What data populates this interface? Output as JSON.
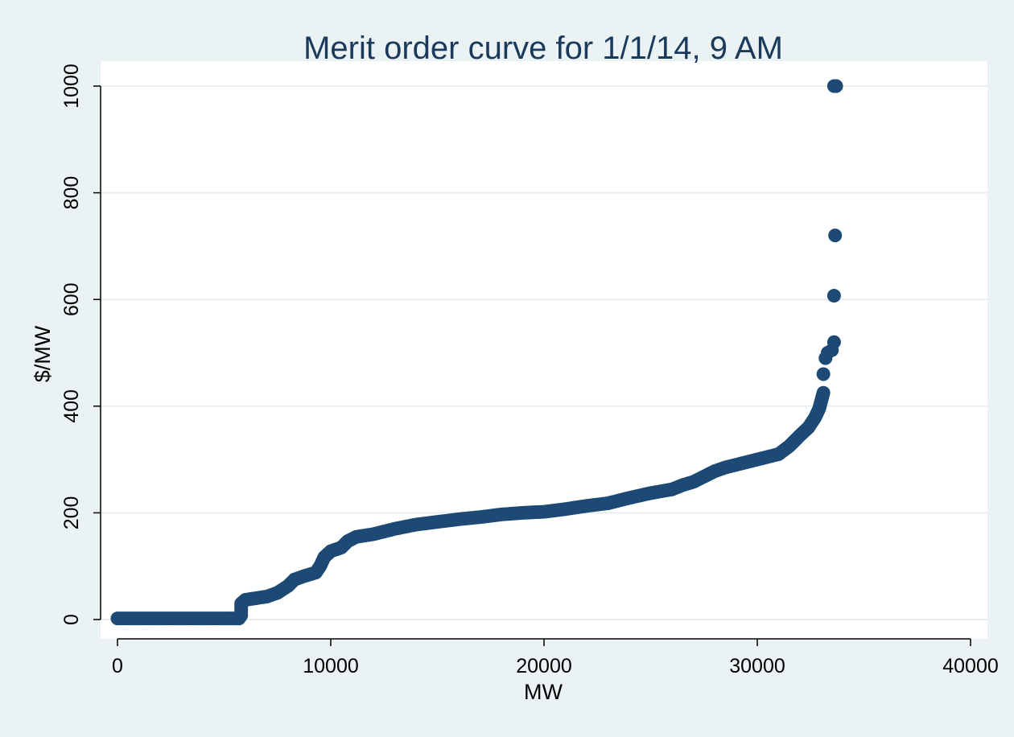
{
  "chart_data": {
    "type": "scatter",
    "title": "Merit order curve for 1/1/14, 9 AM",
    "xlabel": "MW",
    "ylabel": "$/MW",
    "xlim": [
      0,
      40000
    ],
    "ylim": [
      0,
      1000
    ],
    "xticks": [
      0,
      10000,
      20000,
      30000,
      40000
    ],
    "yticks": [
      0,
      200,
      400,
      600,
      800,
      1000
    ],
    "grid": "horizontal",
    "legend": "none",
    "colors": {
      "marker": "#1c4a74",
      "plot_bg": "#ffffff",
      "outer_bg": "#eaf2f3",
      "gridline": "#e6eef0",
      "title": "#1a3a5c"
    },
    "curve_points": [
      [
        0,
        2
      ],
      [
        1000,
        2
      ],
      [
        2000,
        2
      ],
      [
        3000,
        2
      ],
      [
        4000,
        2
      ],
      [
        5000,
        2
      ],
      [
        5700,
        2
      ],
      [
        5800,
        8
      ],
      [
        5800,
        30
      ],
      [
        6000,
        37
      ],
      [
        6500,
        40
      ],
      [
        7000,
        43
      ],
      [
        7500,
        50
      ],
      [
        8000,
        63
      ],
      [
        8300,
        75
      ],
      [
        8800,
        82
      ],
      [
        9300,
        88
      ],
      [
        9500,
        100
      ],
      [
        9700,
        117
      ],
      [
        10000,
        128
      ],
      [
        10500,
        135
      ],
      [
        10800,
        147
      ],
      [
        11200,
        155
      ],
      [
        12000,
        160
      ],
      [
        13000,
        170
      ],
      [
        14000,
        178
      ],
      [
        15000,
        183
      ],
      [
        16000,
        188
      ],
      [
        17000,
        192
      ],
      [
        18000,
        197
      ],
      [
        19000,
        200
      ],
      [
        20000,
        202
      ],
      [
        21000,
        207
      ],
      [
        22000,
        213
      ],
      [
        23000,
        218
      ],
      [
        24000,
        228
      ],
      [
        25000,
        237
      ],
      [
        26000,
        244
      ],
      [
        26500,
        252
      ],
      [
        27000,
        258
      ],
      [
        27500,
        268
      ],
      [
        28000,
        278
      ],
      [
        28500,
        285
      ],
      [
        29000,
        290
      ],
      [
        30000,
        300
      ],
      [
        30500,
        305
      ],
      [
        31000,
        310
      ],
      [
        31500,
        325
      ],
      [
        32000,
        345
      ],
      [
        32400,
        360
      ],
      [
        32700,
        378
      ],
      [
        32900,
        395
      ],
      [
        33000,
        410
      ],
      [
        33100,
        425
      ]
    ],
    "extra_points": [
      [
        33100,
        460
      ],
      [
        33200,
        490
      ],
      [
        33300,
        500
      ],
      [
        33500,
        505
      ],
      [
        33600,
        520
      ],
      [
        33600,
        607
      ],
      [
        33650,
        720
      ],
      [
        33600,
        1000
      ],
      [
        33700,
        1000
      ]
    ]
  }
}
